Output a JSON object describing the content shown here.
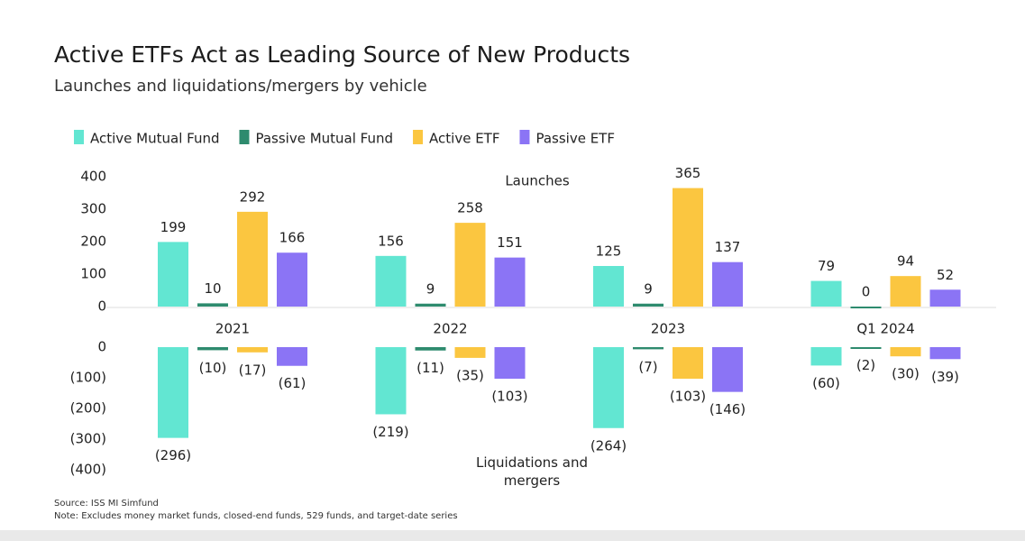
{
  "chart_data": [
    {
      "type": "bar",
      "title": "Active ETFs Act as Leading Source of New Products",
      "subtitle": "Launches and liquidations/mergers by vehicle",
      "annotation": "Launches",
      "source": "Source: ISS MI Simfund",
      "note": "Note: Excludes money market funds, closed-end funds, 529 funds, and target-date series",
      "categories": [
        "2021",
        "2022",
        "2023",
        "Q1 2024"
      ],
      "series": [
        {
          "name": "Active Mutual Fund",
          "color": "#62e6d2",
          "values": [
            199,
            156,
            125,
            79
          ]
        },
        {
          "name": "Passive Mutual Fund",
          "color": "#2e8b6e",
          "values": [
            10,
            9,
            9,
            0
          ]
        },
        {
          "name": "Active ETF",
          "color": "#fbc640",
          "values": [
            292,
            258,
            365,
            94
          ]
        },
        {
          "name": "Passive ETF",
          "color": "#8b74f5",
          "values": [
            166,
            151,
            137,
            52
          ]
        }
      ],
      "ylim": [
        0,
        400
      ],
      "yticks": [
        0,
        100,
        200,
        300,
        400
      ]
    },
    {
      "type": "bar",
      "annotation": "Liquidations and mergers",
      "series": [
        {
          "color": "#62e6d2",
          "values": [
            -296,
            -219,
            -264,
            -60
          ],
          "value_labels": [
            "(296)",
            "(219)",
            "(264)",
            "(60)"
          ]
        },
        {
          "color": "#2e8b6e",
          "values": [
            -10,
            -11,
            -7,
            -2
          ],
          "value_labels": [
            "(10)",
            "(11)",
            "(7)",
            "(2)"
          ]
        },
        {
          "color": "#fbc640",
          "values": [
            -17,
            -35,
            -103,
            -30
          ],
          "value_labels": [
            "(17)",
            "(35)",
            "(103)",
            "(30)"
          ]
        },
        {
          "color": "#8b74f5",
          "values": [
            -61,
            -103,
            -146,
            -39
          ],
          "value_labels": [
            "(61)",
            "(103)",
            "(146)",
            "(39)"
          ]
        }
      ],
      "ylim": [
        -400,
        0
      ],
      "yticks": [
        {
          "value": -400,
          "label": "(400)"
        },
        {
          "value": -300,
          "label": "(300)"
        },
        {
          "value": -200,
          "label": "(200)"
        },
        {
          "value": -100,
          "label": "(100)"
        },
        0
      ]
    }
  ]
}
